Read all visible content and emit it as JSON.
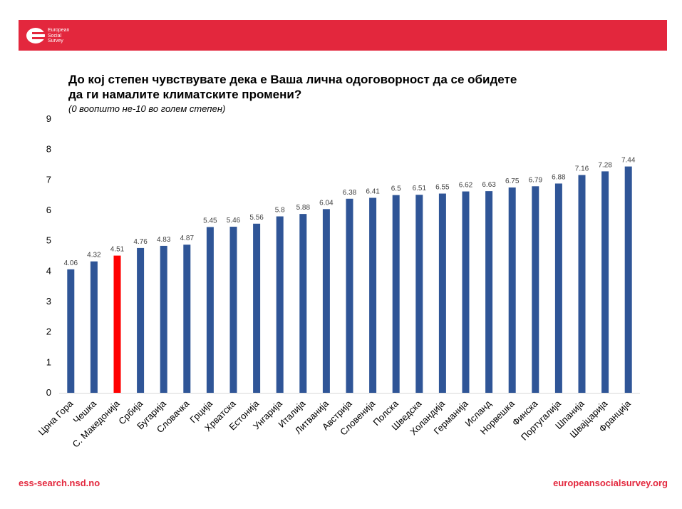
{
  "header": {
    "logo_lines": [
      "European",
      "Social",
      "Survey"
    ]
  },
  "colors": {
    "banner": "#e3273d",
    "bar": "#2f5597",
    "highlight_bar": "#ff0000",
    "footer_text": "#e3273d"
  },
  "chart_data": {
    "type": "bar",
    "title_lines": [
      "До кој степен чувствувате дека е Ваша лична одоговорност да се обидете",
      "да ги намалите климатските промени?"
    ],
    "subtitle": "(0 воопшто не-10 во голем степен)",
    "categories": [
      "Црна Гора",
      "Чешка",
      "С. Македонија",
      "Србија",
      "Бугарија",
      "Словачка",
      "Грција",
      "Хрватска",
      "Естонија",
      "Унгарија",
      "Италија",
      "Литванија",
      "Австрија",
      "Словенија",
      "Полска",
      "Шведска",
      "Холандија",
      "Германија",
      "Исланд",
      "Норвешка",
      "Финска",
      "Португалија",
      "Шпанија",
      "Швајцарија",
      "Франција"
    ],
    "values": [
      4.06,
      4.32,
      4.51,
      4.76,
      4.83,
      4.87,
      5.45,
      5.46,
      5.56,
      5.8,
      5.88,
      6.04,
      6.38,
      6.41,
      6.5,
      6.51,
      6.55,
      6.62,
      6.63,
      6.75,
      6.79,
      6.88,
      7.16,
      7.28,
      7.44
    ],
    "highlight_category": "С. Македонија",
    "ylim": [
      0,
      9
    ],
    "yticks": [
      0,
      1,
      2,
      3,
      4,
      5,
      6,
      7,
      8,
      9
    ],
    "xlabel": "",
    "ylabel": "",
    "grid": false,
    "legend": "none"
  },
  "footer": {
    "left": "ess-search.nsd.no",
    "right": "europeansocialsurvey.org"
  }
}
